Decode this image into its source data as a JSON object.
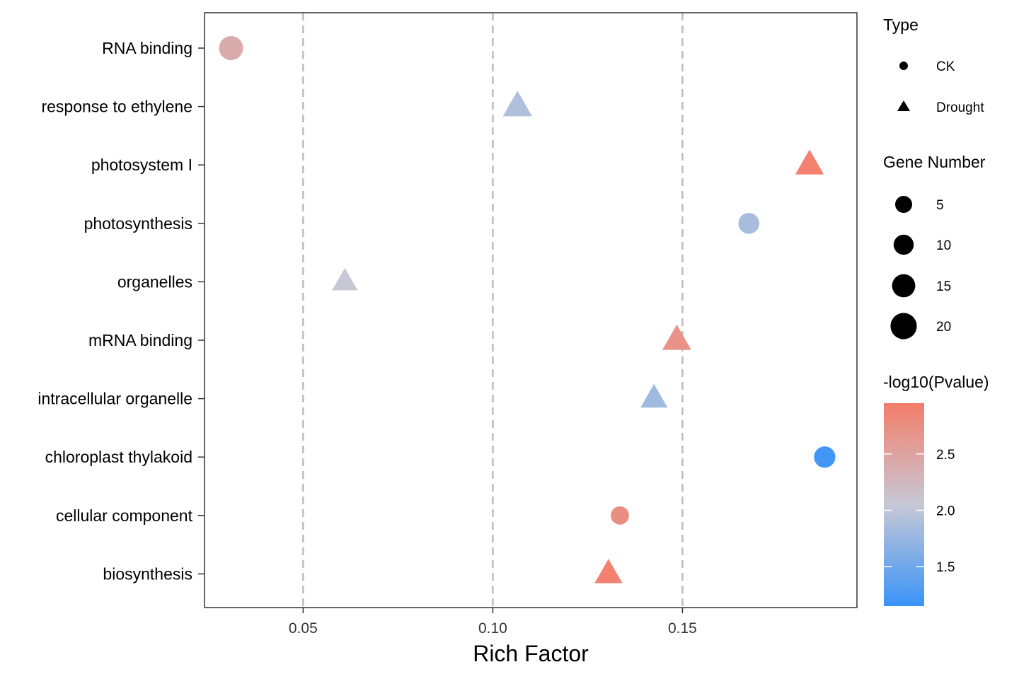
{
  "chart_data": {
    "type": "scatter",
    "title": "",
    "xlabel": "Rich Factor",
    "ylabel": "",
    "xlim": [
      0.024,
      0.196
    ],
    "x_ticks": [
      {
        "value": 0.05,
        "label": "0.05"
      },
      {
        "value": 0.1,
        "label": "0.10"
      },
      {
        "value": 0.15,
        "label": "0.15"
      }
    ],
    "categories": [
      "RNA binding",
      "response to ethylene",
      "photosystem I",
      "photosynthesis",
      "organelles",
      "mRNA binding",
      "intracellular organelle",
      "chloroplast thylakoid",
      "cellular component",
      "biosynthesis"
    ],
    "points": [
      {
        "category": "RNA binding",
        "x": 0.031,
        "type": "CK",
        "gene_number": 17,
        "neg_log10_p": 2.4
      },
      {
        "category": "response to ethylene",
        "x": 0.1065,
        "type": "Drought",
        "gene_number": 18,
        "neg_log10_p": 1.9
      },
      {
        "category": "photosystem I",
        "x": 0.1835,
        "type": "Drought",
        "gene_number": 16,
        "neg_log10_p": 2.9
      },
      {
        "category": "photosynthesis",
        "x": 0.1675,
        "type": "CK",
        "gene_number": 8,
        "neg_log10_p": 1.85
      },
      {
        "category": "organelles",
        "x": 0.061,
        "type": "Drought",
        "gene_number": 9,
        "neg_log10_p": 2.05
      },
      {
        "category": "mRNA binding",
        "x": 0.1485,
        "type": "Drought",
        "gene_number": 17,
        "neg_log10_p": 2.7
      },
      {
        "category": "intracellular organelle",
        "x": 0.1425,
        "type": "Drought",
        "gene_number": 12,
        "neg_log10_p": 1.8
      },
      {
        "category": "chloroplast thylakoid",
        "x": 0.1875,
        "type": "CK",
        "gene_number": 9,
        "neg_log10_p": 1.2
      },
      {
        "category": "cellular component",
        "x": 0.1335,
        "type": "CK",
        "gene_number": 3,
        "neg_log10_p": 2.75
      },
      {
        "category": "biosynthesis",
        "x": 0.1305,
        "type": "Drought",
        "gene_number": 14,
        "neg_log10_p": 2.9
      }
    ],
    "grid": "vertical dashed at major ticks",
    "legend": {
      "position": "right",
      "type": {
        "title": "Type",
        "entries": [
          "CK",
          "Drought"
        ]
      },
      "gene_number": {
        "title": "Gene Number",
        "entries": [
          5,
          10,
          15,
          20
        ],
        "labels": [
          "5",
          "10",
          "15",
          "20"
        ]
      },
      "color": {
        "title": "-log10(Pvalue)",
        "range": [
          1.15,
          2.95
        ],
        "ticks": [
          {
            "value": 2.5,
            "label": "2.5"
          },
          {
            "value": 2.0,
            "label": "2.0"
          },
          {
            "value": 1.5,
            "label": "1.5"
          }
        ],
        "low_color": "#3a93f8",
        "mid_color": "#c7c8d6",
        "high_color": "#f47d6a"
      }
    }
  }
}
